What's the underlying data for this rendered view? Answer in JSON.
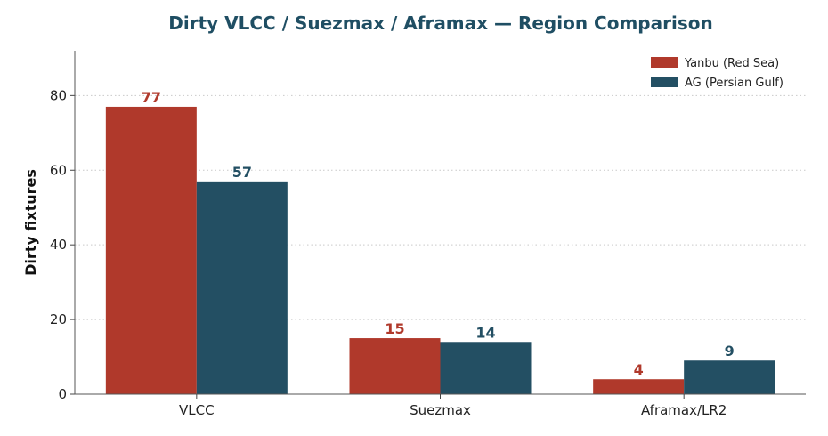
{
  "chart_data": {
    "type": "bar",
    "title": "Dirty VLCC / Suezmax / Aframax — Region Comparison",
    "xlabel": "",
    "ylabel": "Dirty fixtures",
    "categories": [
      "VLCC",
      "Suezmax",
      "Aframax/LR2"
    ],
    "series": [
      {
        "name": "Yanbu (Red Sea)",
        "values": [
          77,
          15,
          4
        ],
        "color": "#b0392b"
      },
      {
        "name": "AG (Persian Gulf)",
        "values": [
          57,
          14,
          9
        ],
        "color": "#234f63"
      }
    ],
    "ylim": [
      0,
      92
    ],
    "yticks": [
      0,
      20,
      40,
      60,
      80
    ],
    "grid": "horizontal dotted",
    "legend_position": "top-right"
  }
}
